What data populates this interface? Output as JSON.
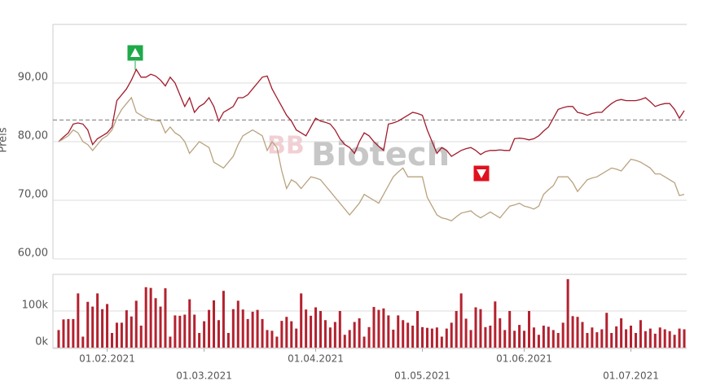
{
  "chart_data": [
    {
      "type": "line",
      "y_label": "Preis",
      "watermark_logo": "BB",
      "watermark": "Biotech",
      "ylim": [
        60,
        100
      ],
      "yticks": [
        {
          "value": 60,
          "label": "60,00"
        },
        {
          "value": 70,
          "label": "70,00"
        },
        {
          "value": 80,
          "label": "80,00"
        },
        {
          "value": 90,
          "label": "90,00"
        }
      ],
      "grid": true,
      "reference_line": 83.7,
      "series": [
        {
          "color": "#a11b2b",
          "values": [
            80,
            80.8,
            81.5,
            83,
            83.2,
            83,
            82,
            79.5,
            80.5,
            81,
            81.5,
            82.5,
            87,
            88,
            89,
            90.5,
            92.3,
            91,
            91,
            91.5,
            91.2,
            90.5,
            89.5,
            91,
            90,
            88,
            86,
            87.5,
            85,
            86,
            86.5,
            87.5,
            86,
            83.5,
            85,
            85.5,
            86,
            87.5,
            87.5,
            88,
            89,
            90,
            91,
            91.2,
            89,
            87.5,
            86,
            84.5,
            83.5,
            82,
            81.5,
            81,
            82.5,
            84,
            83.5,
            83.3,
            83,
            82,
            80.5,
            79.5,
            79,
            78,
            80,
            81.5,
            81,
            80,
            79.2,
            78.5,
            83,
            83.2,
            83.5,
            84,
            84.5,
            85,
            84.8,
            84.5,
            82,
            80,
            78,
            79,
            78.5,
            77.5,
            78,
            78.5,
            78.8,
            79,
            78.5,
            77.8,
            78.3,
            78.5,
            78.5,
            78.6,
            78.5,
            78.5,
            80.5,
            80.6,
            80.5,
            80.3,
            80.5,
            81,
            81.8,
            82.5,
            84,
            85.5,
            85.8,
            86,
            86,
            85,
            84.8,
            84.5,
            84.8,
            85,
            85,
            85.8,
            86.5,
            87,
            87.2,
            87,
            87,
            87,
            87.2,
            87.5,
            86.8,
            86,
            86.3,
            86.5,
            86.5,
            85.5,
            84,
            85.3
          ]
        },
        {
          "color": "#b9a27f",
          "values": [
            80,
            80.5,
            81,
            82,
            81.5,
            80,
            79.5,
            78.5,
            79.5,
            80.5,
            81,
            82,
            84,
            85.5,
            86.5,
            87.5,
            85,
            84.5,
            84,
            83.8,
            83.6,
            83.5,
            81.5,
            82.5,
            81.5,
            81,
            80,
            78,
            79,
            80,
            79.5,
            79,
            76.5,
            76,
            75.5,
            76.5,
            77.5,
            79.5,
            81,
            81.5,
            82,
            81.5,
            81,
            78.5,
            80,
            79,
            75,
            72,
            73.5,
            73,
            72,
            73,
            74,
            73.8,
            73.5,
            72.5,
            71.5,
            70.5,
            69.5,
            68.5,
            67.5,
            68.5,
            69.5,
            71,
            70.5,
            70,
            69.5,
            71,
            72.5,
            74,
            74.8,
            75.5,
            74,
            74,
            74,
            74,
            70.5,
            69,
            67.5,
            67,
            66.8,
            66.5,
            67.2,
            67.8,
            68,
            68.2,
            67.5,
            67,
            67.5,
            68,
            67.5,
            67,
            68,
            69,
            69.2,
            69.5,
            69,
            68.8,
            68.5,
            69,
            71,
            71.8,
            72.5,
            74,
            74,
            74,
            73,
            71.5,
            72.5,
            73.5,
            73.8,
            74,
            74.5,
            75,
            75.5,
            75.3,
            75,
            76,
            77,
            76.8,
            76.5,
            76,
            75.5,
            74.5,
            74.5,
            74,
            73.5,
            73,
            70.8,
            71
          ]
        }
      ]
    },
    {
      "type": "bar",
      "color": "#b3222f",
      "ylim": [
        0,
        200
      ],
      "yticks": [
        {
          "value": 0,
          "label": "0k"
        },
        {
          "value": 100,
          "label": "100k"
        }
      ],
      "grid": true,
      "categories": [
        null,
        null,
        null,
        null,
        null,
        null,
        null,
        null,
        null,
        null,
        "01.02.2021",
        null,
        null,
        null,
        null,
        null,
        null,
        null,
        null,
        null,
        null,
        null,
        null,
        null,
        null,
        null,
        null,
        null,
        null,
        null,
        "01.03.2021",
        null,
        null,
        null,
        null,
        null,
        null,
        null,
        null,
        null,
        null,
        null,
        null,
        null,
        null,
        null,
        null,
        null,
        null,
        null,
        null,
        null,
        null,
        "01.04.2021",
        null,
        null,
        null,
        null,
        null,
        null,
        null,
        null,
        null,
        null,
        null,
        null,
        null,
        null,
        null,
        null,
        null,
        null,
        null,
        null,
        null,
        "01.05.2021",
        null,
        null,
        null,
        null,
        null,
        null,
        null,
        null,
        null,
        null,
        null,
        null,
        null,
        null,
        null,
        null,
        null,
        null,
        null,
        null,
        "01.06.2021",
        null,
        null,
        null,
        null,
        null,
        null,
        null,
        null,
        null,
        null,
        null,
        null,
        null,
        null,
        null,
        null,
        null,
        null,
        null,
        null,
        null,
        "01.07.2021",
        null,
        null,
        null,
        null,
        null,
        null,
        null,
        null,
        null,
        null,
        null
      ],
      "values": [
        48,
        77,
        78,
        78,
        148,
        30,
        125,
        112,
        148,
        105,
        119,
        40,
        68,
        68,
        102,
        85,
        128,
        60,
        165,
        163,
        135,
        112,
        162,
        30,
        88,
        87,
        90,
        132,
        90,
        40,
        72,
        103,
        129,
        75,
        155,
        40,
        105,
        128,
        104,
        78,
        98,
        103,
        78,
        48,
        46,
        30,
        73,
        84,
        72,
        52,
        148,
        104,
        87,
        110,
        100,
        75,
        55,
        70,
        100,
        35,
        48,
        70,
        80,
        30,
        56,
        111,
        103,
        107,
        88,
        49,
        88,
        75,
        68,
        60,
        100,
        56,
        54,
        52,
        55,
        30,
        52,
        68,
        100,
        148,
        79,
        48,
        110,
        105,
        56,
        60,
        126,
        80,
        48,
        100,
        46,
        62,
        46,
        100,
        55,
        35,
        60,
        57,
        48,
        40,
        68,
        187,
        86,
        84,
        70,
        40,
        55,
        42,
        50,
        95,
        40,
        58,
        80,
        50,
        60,
        40,
        75,
        45,
        52,
        38,
        55,
        50,
        45,
        35,
        52,
        50
      ]
    }
  ]
}
